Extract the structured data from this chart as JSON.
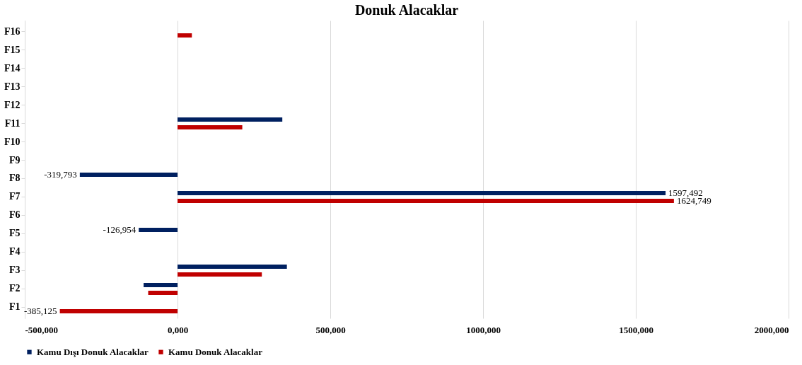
{
  "chart_data": {
    "type": "bar",
    "orientation": "horizontal",
    "title": "Donuk Alacaklar",
    "categories": [
      "F16",
      "F15",
      "F14",
      "F13",
      "F12",
      "F11",
      "F10",
      "F9",
      "F8",
      "F7",
      "F6",
      "F5",
      "F4",
      "F3",
      "F2",
      "F1"
    ],
    "series": [
      {
        "name": "Kamu Dışı Donuk Alacaklar",
        "color": "#002060",
        "values": [
          null,
          null,
          null,
          null,
          null,
          343000,
          null,
          null,
          -319793,
          1597492,
          null,
          -126954,
          null,
          358000,
          -111000,
          null
        ],
        "value_labels": [
          null,
          null,
          null,
          null,
          null,
          null,
          null,
          null,
          "-319,793",
          "1597,492",
          null,
          "-126,954",
          null,
          null,
          null,
          null
        ]
      },
      {
        "name": "Kamu Donuk Alacaklar",
        "color": "#c00000",
        "values": [
          47000,
          null,
          null,
          null,
          null,
          212000,
          null,
          null,
          null,
          1624749,
          null,
          null,
          null,
          276000,
          -96000,
          -385125
        ],
        "value_labels": [
          null,
          null,
          null,
          null,
          null,
          null,
          null,
          null,
          null,
          "1624,749",
          null,
          null,
          null,
          null,
          null,
          "-385,125"
        ]
      }
    ],
    "xlim": [
      -500000,
      2000000
    ],
    "xticks": [
      {
        "value": -500000,
        "label": "-500,000"
      },
      {
        "value": 0,
        "label": "0,000"
      },
      {
        "value": 500000,
        "label": "500,000"
      },
      {
        "value": 1000000,
        "label": "1000,000"
      },
      {
        "value": 1500000,
        "label": "1500,000"
      },
      {
        "value": 2000000,
        "label": "2000,000"
      }
    ],
    "grid": "x",
    "legend": "bottom"
  }
}
